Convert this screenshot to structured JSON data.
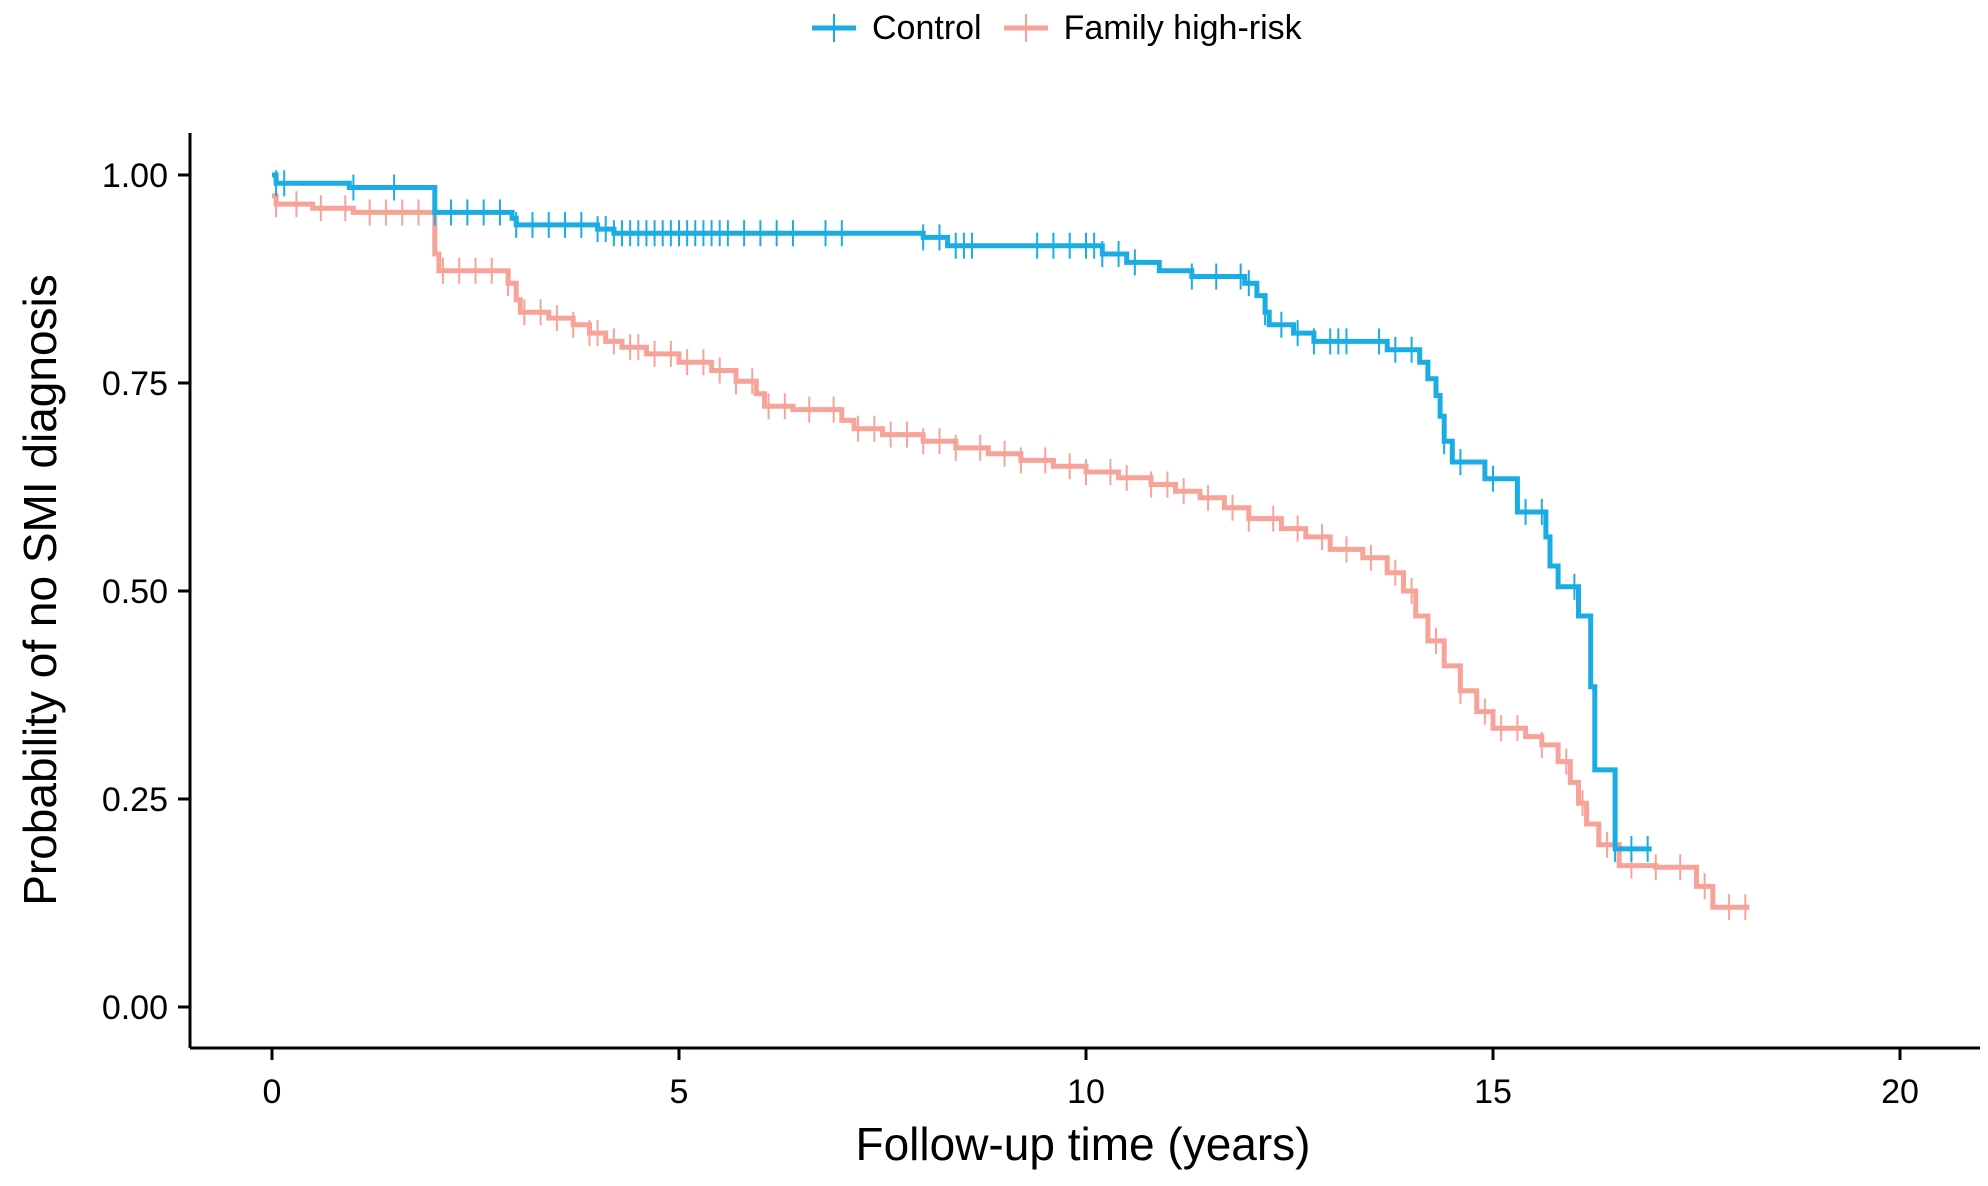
{
  "chart_data": {
    "type": "line",
    "subtype": "kaplan-meier survival curve (step) with censoring tick marks",
    "title": "",
    "xlabel": "Follow-up time (years)",
    "ylabel": "Probability of no SMI diagnosis",
    "xlim": [
      0,
      20
    ],
    "ylim": [
      0,
      1
    ],
    "x_ticks": [
      "0",
      "5",
      "10",
      "15",
      "20"
    ],
    "y_ticks": [
      "0.00",
      "0.25",
      "0.50",
      "0.75",
      "1.00"
    ],
    "grid": false,
    "legend_position": "top",
    "series": [
      {
        "name": "Control",
        "color": "#1AACE2",
        "steps": [
          [
            0.0,
            1.0
          ],
          [
            0.05,
            0.99
          ],
          [
            0.95,
            0.985
          ],
          [
            2.0,
            0.955
          ],
          [
            2.95,
            0.948
          ],
          [
            3.0,
            0.94
          ],
          [
            4.0,
            0.935
          ],
          [
            4.2,
            0.93
          ],
          [
            8.0,
            0.925
          ],
          [
            8.3,
            0.915
          ],
          [
            10.2,
            0.905
          ],
          [
            10.5,
            0.895
          ],
          [
            10.9,
            0.885
          ],
          [
            11.3,
            0.878
          ],
          [
            11.95,
            0.87
          ],
          [
            12.1,
            0.855
          ],
          [
            12.2,
            0.835
          ],
          [
            12.25,
            0.82
          ],
          [
            12.55,
            0.81
          ],
          [
            12.8,
            0.8
          ],
          [
            13.7,
            0.79
          ],
          [
            14.1,
            0.775
          ],
          [
            14.2,
            0.755
          ],
          [
            14.3,
            0.735
          ],
          [
            14.35,
            0.71
          ],
          [
            14.4,
            0.68
          ],
          [
            14.5,
            0.655
          ],
          [
            14.9,
            0.635
          ],
          [
            15.3,
            0.595
          ],
          [
            15.65,
            0.565
          ],
          [
            15.7,
            0.53
          ],
          [
            15.8,
            0.505
          ],
          [
            16.05,
            0.47
          ],
          [
            16.2,
            0.385
          ],
          [
            16.25,
            0.285
          ],
          [
            16.5,
            0.19
          ],
          [
            16.95,
            0.19
          ]
        ],
        "censor_times": [
          0.05,
          0.15,
          1.0,
          1.5,
          2.0,
          2.2,
          2.4,
          2.6,
          2.8,
          3.0,
          3.2,
          3.4,
          3.6,
          3.8,
          4.0,
          4.1,
          4.2,
          4.3,
          4.4,
          4.5,
          4.6,
          4.7,
          4.8,
          4.9,
          5.0,
          5.1,
          5.2,
          5.3,
          5.4,
          5.5,
          5.6,
          5.8,
          6.0,
          6.2,
          6.4,
          6.8,
          7.0,
          8.0,
          8.2,
          8.4,
          8.5,
          8.6,
          9.4,
          9.6,
          9.8,
          10.0,
          10.1,
          10.2,
          10.4,
          10.6,
          11.3,
          11.6,
          11.9,
          12.0,
          12.2,
          12.4,
          12.6,
          12.8,
          13.0,
          13.1,
          13.2,
          13.6,
          13.8,
          14.0,
          14.4,
          14.6,
          15.0,
          15.4,
          15.6,
          16.0,
          16.5,
          16.7,
          16.9
        ]
      },
      {
        "name": "Family high-risk",
        "color": "#F8A399",
        "steps": [
          [
            0.0,
            0.975
          ],
          [
            0.05,
            0.965
          ],
          [
            0.5,
            0.96
          ],
          [
            1.0,
            0.955
          ],
          [
            2.0,
            0.905
          ],
          [
            2.05,
            0.885
          ],
          [
            2.9,
            0.87
          ],
          [
            3.0,
            0.85
          ],
          [
            3.05,
            0.835
          ],
          [
            3.4,
            0.828
          ],
          [
            3.7,
            0.82
          ],
          [
            3.9,
            0.81
          ],
          [
            4.1,
            0.8
          ],
          [
            4.3,
            0.793
          ],
          [
            4.6,
            0.785
          ],
          [
            5.0,
            0.775
          ],
          [
            5.4,
            0.765
          ],
          [
            5.7,
            0.752
          ],
          [
            5.95,
            0.737
          ],
          [
            6.05,
            0.722
          ],
          [
            6.4,
            0.718
          ],
          [
            7.0,
            0.705
          ],
          [
            7.15,
            0.695
          ],
          [
            7.5,
            0.688
          ],
          [
            8.0,
            0.68
          ],
          [
            8.4,
            0.672
          ],
          [
            8.8,
            0.665
          ],
          [
            9.2,
            0.657
          ],
          [
            9.6,
            0.65
          ],
          [
            10.0,
            0.643
          ],
          [
            10.4,
            0.636
          ],
          [
            10.8,
            0.628
          ],
          [
            11.1,
            0.62
          ],
          [
            11.4,
            0.612
          ],
          [
            11.7,
            0.6
          ],
          [
            12.0,
            0.587
          ],
          [
            12.4,
            0.575
          ],
          [
            12.7,
            0.565
          ],
          [
            13.0,
            0.55
          ],
          [
            13.4,
            0.54
          ],
          [
            13.7,
            0.522
          ],
          [
            13.9,
            0.5
          ],
          [
            14.05,
            0.47
          ],
          [
            14.2,
            0.44
          ],
          [
            14.4,
            0.41
          ],
          [
            14.6,
            0.38
          ],
          [
            14.8,
            0.355
          ],
          [
            15.0,
            0.335
          ],
          [
            15.4,
            0.325
          ],
          [
            15.6,
            0.315
          ],
          [
            15.8,
            0.295
          ],
          [
            15.95,
            0.27
          ],
          [
            16.05,
            0.245
          ],
          [
            16.15,
            0.22
          ],
          [
            16.3,
            0.195
          ],
          [
            16.55,
            0.17
          ],
          [
            17.0,
            0.168
          ],
          [
            17.5,
            0.145
          ],
          [
            17.7,
            0.12
          ],
          [
            18.15,
            0.12
          ]
        ],
        "censor_times": [
          0.05,
          0.3,
          0.6,
          0.9,
          1.2,
          1.4,
          1.6,
          1.8,
          2.1,
          2.3,
          2.5,
          2.7,
          2.9,
          3.1,
          3.3,
          3.5,
          3.7,
          3.9,
          4.0,
          4.2,
          4.4,
          4.5,
          4.7,
          4.9,
          5.1,
          5.3,
          5.5,
          5.7,
          5.9,
          6.1,
          6.3,
          6.6,
          6.9,
          7.2,
          7.4,
          7.6,
          7.8,
          8.0,
          8.2,
          8.4,
          8.7,
          9.0,
          9.2,
          9.5,
          9.8,
          10.0,
          10.3,
          10.5,
          10.8,
          11.0,
          11.2,
          11.5,
          11.8,
          12.0,
          12.3,
          12.6,
          12.9,
          13.2,
          13.5,
          13.8,
          14.0,
          14.3,
          14.6,
          14.9,
          15.1,
          15.3,
          15.6,
          15.9,
          16.1,
          16.4,
          16.7,
          17.0,
          17.3,
          17.6,
          17.9,
          18.1
        ]
      }
    ]
  }
}
